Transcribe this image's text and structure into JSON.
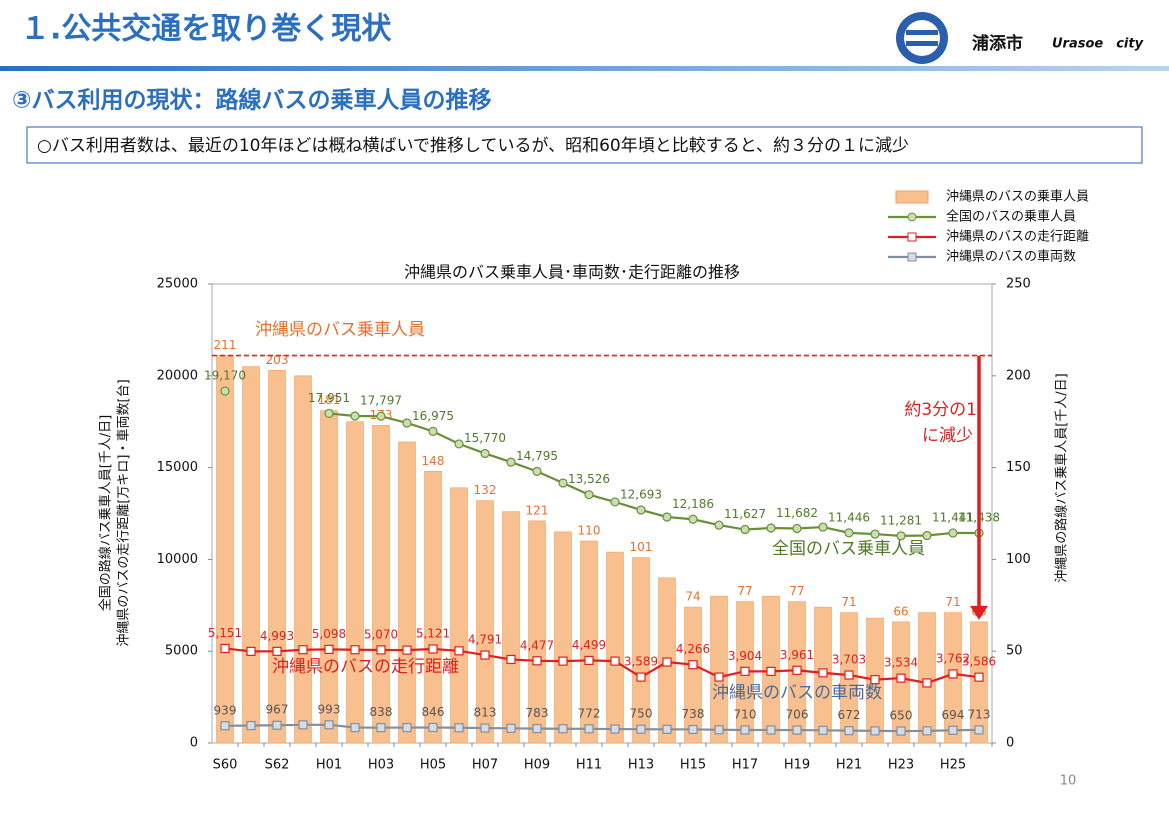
{
  "header": {
    "title": "１.公共交通を取り巻く現状",
    "city": "浦添市",
    "city_en": "Urasoe　city"
  },
  "subtitle": "③バス利用の現状：路線バスの乗車人員の推移",
  "summary": "○バス利用者数は、最近の10年ほどは概ね横ばいで推移しているが、昭和60年頃と比較すると、約３分の１に減少",
  "page_number": "10",
  "chart_data": {
    "type": "bar-line",
    "title": "沖縄県のバス乗車人員･車両数･走行距離の推移",
    "categories": [
      "S60",
      null,
      "S62",
      null,
      "H01",
      null,
      "H03",
      null,
      "H05",
      null,
      "H07",
      null,
      "H09",
      null,
      "H11",
      null,
      "H13",
      null,
      "H15",
      null,
      "H17",
      null,
      "H19",
      null,
      "H21",
      null,
      "H23",
      null,
      "H25",
      null
    ],
    "ylabel": [
      "全国の路線バス乗車人員[千人/日]",
      "沖縄県のバスの走行距離[万キロ]・車両数[台]"
    ],
    "y2label": "沖縄県の路線バス乗車人員[千人/日]",
    "ylim": [
      0,
      25000
    ],
    "yticks": [
      0,
      5000,
      10000,
      15000,
      20000,
      25000
    ],
    "y2lim": [
      0,
      250
    ],
    "y2ticks": [
      0,
      50,
      100,
      150,
      200,
      250
    ],
    "series": [
      {
        "name": "沖縄県のバスの乗車人員",
        "type": "bar",
        "axis": "y2",
        "color": "#f9c08f",
        "label_color": "#e8702a",
        "values": [
          211,
          205,
          203,
          200,
          181,
          175,
          173,
          164,
          148,
          139,
          132,
          126,
          121,
          115,
          110,
          104,
          101,
          90,
          74,
          80,
          77,
          80,
          77,
          74,
          71,
          68,
          66,
          71,
          71,
          66
        ],
        "value_labels": [
          "211",
          null,
          "203",
          null,
          "181",
          null,
          "173",
          null,
          "148",
          null,
          "132",
          null,
          "121",
          null,
          "110",
          null,
          "101",
          null,
          "74",
          null,
          "77",
          null,
          "77",
          null,
          "71",
          null,
          "66",
          null,
          "71",
          "66"
        ]
      },
      {
        "name": "全国のバスの乗車人員",
        "type": "line",
        "marker": "circle",
        "color": "#6a8f3a",
        "marker_fill": "#c8e0b0",
        "label_color": "#4f7a28",
        "values": [
          19170,
          null,
          null,
          null,
          17951,
          17810,
          17797,
          17430,
          16975,
          16290,
          15770,
          15300,
          14795,
          14160,
          13526,
          13130,
          12693,
          12310,
          12186,
          11870,
          11627,
          11710,
          11682,
          11760,
          11446,
          11380,
          11281,
          11300,
          11441,
          11438
        ],
        "value_labels": [
          "19,170",
          null,
          null,
          null,
          "17,951",
          null,
          "17,797",
          null,
          "16,975",
          null,
          "15,770",
          null,
          "14,795",
          null,
          "13,526",
          null,
          "12,693",
          null,
          "12,186",
          null,
          "11,627",
          null,
          "11,682",
          null,
          "11,446",
          null,
          "11,281",
          null,
          "11,441",
          "11,438"
        ]
      },
      {
        "name": "沖縄県のバスの走行距離",
        "type": "line",
        "marker": "square",
        "color": "#e02020",
        "marker_fill": "#ffffff",
        "label_color": "#e02020",
        "values": [
          5151,
          4990,
          4993,
          5080,
          5098,
          5080,
          5070,
          5060,
          5121,
          5020,
          4791,
          4550,
          4477,
          4460,
          4499,
          4460,
          3589,
          4410,
          4266,
          3590,
          3904,
          3900,
          3961,
          3820,
          3703,
          3450,
          3534,
          3270,
          3762,
          3586
        ],
        "value_labels": [
          "5,151",
          null,
          "4,993",
          null,
          "5,098",
          null,
          "5,070",
          null,
          "5,121",
          null,
          "4,791",
          null,
          "4,477",
          null,
          "4,499",
          null,
          "3,589",
          null,
          "4,266",
          null,
          "3,904",
          null,
          "3,961",
          null,
          "3,703",
          null,
          "3,534",
          null,
          "3,762",
          "3,586"
        ]
      },
      {
        "name": "沖縄県のバスの車両数",
        "type": "line",
        "marker": "square",
        "color": "#8090a0",
        "marker_fill": "#d8dce2",
        "label_color": "#555555",
        "values": [
          939,
          950,
          967,
          990,
          993,
          840,
          838,
          840,
          846,
          830,
          813,
          800,
          783,
          775,
          772,
          760,
          750,
          745,
          738,
          720,
          710,
          710,
          706,
          690,
          672,
          660,
          650,
          660,
          694,
          713
        ],
        "value_labels": [
          "939",
          null,
          "967",
          null,
          "993",
          null,
          "838",
          null,
          "846",
          null,
          "813",
          null,
          "783",
          null,
          "772",
          null,
          "750",
          null,
          "738",
          null,
          "710",
          null,
          "706",
          null,
          "672",
          null,
          "650",
          null,
          "694",
          "713"
        ]
      }
    ],
    "annotations": [
      {
        "text": "沖縄県のバス乗車人員",
        "color": "#e8702a"
      },
      {
        "text": "全国のバス乗車人員",
        "color": "#4f7a28"
      },
      {
        "text": "沖縄県のバスの走行距離",
        "color": "#e02020"
      },
      {
        "text": "沖縄県のバスの車両数",
        "color": "#4a6a9a"
      },
      {
        "text": "約3分の1",
        "color": "#e02020"
      },
      {
        "text": "に減少",
        "color": "#e02020"
      }
    ]
  }
}
